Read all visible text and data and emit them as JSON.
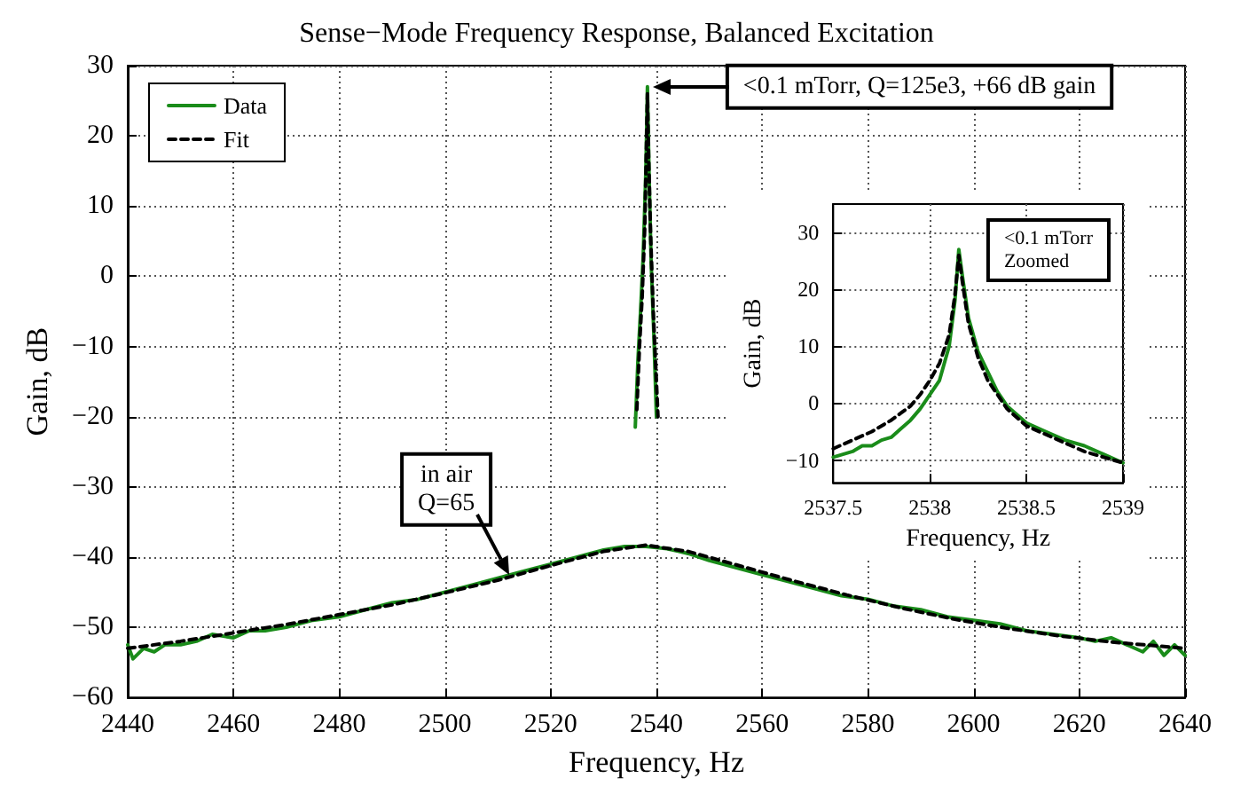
{
  "chart_data": [
    {
      "type": "line",
      "title": "Sense−Mode Frequency Response, Balanced Excitation",
      "xlabel": "Frequency, Hz",
      "ylabel": "Gain, dB",
      "xlim": [
        2440,
        2640
      ],
      "xticks": [
        2440,
        2460,
        2480,
        2500,
        2520,
        2540,
        2560,
        2580,
        2600,
        2620,
        2640
      ],
      "ylim": [
        -60,
        30
      ],
      "yticks": [
        -60,
        -50,
        -40,
        -30,
        -20,
        -10,
        0,
        10,
        20,
        30
      ],
      "grid": true,
      "legend": "top left",
      "marker": "none",
      "annotations": [
        "<0.1 mTorr, Q=125e3, +66 dB gain",
        {
          "text": "in air\nQ=65",
          "x": 2512,
          "y": -42.5
        }
      ],
      "series": [
        {
          "name": "Data",
          "color": "#1a8c1a",
          "line_style": "solid",
          "x": [
            2440,
            2441,
            2443,
            2445,
            2447,
            2450,
            2453,
            2456,
            2460,
            2463,
            2466,
            2470,
            2475,
            2480,
            2485,
            2490,
            2495,
            2500,
            2505,
            2510,
            2515,
            2520,
            2525,
            2530,
            2534,
            2538,
            2542,
            2546,
            2550,
            2555,
            2560,
            2565,
            2570,
            2575,
            2580,
            2585,
            2590,
            2595,
            2600,
            2605,
            2610,
            2615,
            2620,
            2623,
            2626,
            2629,
            2632,
            2634,
            2636,
            2638,
            2640
          ],
          "values": [
            -52.5,
            -54.5,
            -53,
            -53.5,
            -52.5,
            -52.5,
            -52,
            -51,
            -51.5,
            -50.5,
            -50.5,
            -50,
            -49,
            -48.5,
            -47.5,
            -46.5,
            -46,
            -45,
            -44,
            -43,
            -42,
            -41,
            -40,
            -39,
            -38.5,
            -38.5,
            -38.8,
            -39.5,
            -40.5,
            -41.5,
            -42.5,
            -43.5,
            -44.5,
            -45.5,
            -46,
            -47,
            -47.5,
            -48.5,
            -49,
            -49.5,
            -50.5,
            -51,
            -51.5,
            -52,
            -51.5,
            -52.5,
            -53.5,
            -52,
            -54,
            -52.5,
            -54
          ]
        },
        {
          "name": "Fit",
          "color": "#000000",
          "line_style": "dashed",
          "x": [
            2440,
            2450,
            2460,
            2470,
            2480,
            2490,
            2500,
            2510,
            2520,
            2530,
            2538,
            2546,
            2556,
            2566,
            2576,
            2586,
            2596,
            2606,
            2616,
            2626,
            2640
          ],
          "values": [
            -53,
            -52,
            -50.8,
            -49.6,
            -48.2,
            -46.8,
            -45.1,
            -43.3,
            -41.2,
            -39.2,
            -38.3,
            -39.2,
            -41.3,
            -43.4,
            -45.4,
            -47.2,
            -48.8,
            -50.1,
            -51.2,
            -52.1,
            -53
          ]
        },
        {
          "color": "#1a8c1a",
          "line_style": "solid",
          "x": [
            2536,
            2536.5,
            2537,
            2537.5,
            2538,
            2538.3,
            2538.6,
            2539,
            2539.5,
            2540
          ],
          "values": [
            -21.5,
            -12,
            -5,
            3,
            15,
            27,
            15,
            2,
            -8,
            -20
          ]
        },
        {
          "color": "#000000",
          "line_style": "dashed",
          "x": [
            2536.3,
            2536.8,
            2537.3,
            2537.8,
            2538.1,
            2538.3,
            2538.5,
            2538.9,
            2539.4,
            2540.3
          ],
          "values": [
            -19,
            -10,
            -3,
            7,
            18,
            26,
            18,
            6,
            -5,
            -20
          ]
        }
      ]
    },
    {
      "type": "line",
      "xlabel": "Frequency, Hz",
      "ylabel": "Gain, dB",
      "xlim": [
        2537.5,
        2539
      ],
      "xticks": [
        2537.5,
        2538,
        2538.5,
        2539
      ],
      "ylim": [
        -14,
        35
      ],
      "yticks": [
        -10,
        0,
        10,
        20,
        30
      ],
      "grid": true,
      "marker": "none",
      "annotations": [
        "<0.1 mTorr\nZoomed"
      ],
      "series": [
        {
          "color": "#1a8c1a",
          "line_style": "solid",
          "x": [
            2537.5,
            2537.55,
            2537.6,
            2537.65,
            2537.7,
            2537.75,
            2537.8,
            2537.85,
            2537.9,
            2537.95,
            2538,
            2538.05,
            2538.1,
            2538.13,
            2538.15,
            2538.17,
            2538.2,
            2538.25,
            2538.3,
            2538.35,
            2538.4,
            2538.45,
            2538.5,
            2538.6,
            2538.7,
            2538.8,
            2538.9,
            2539
          ],
          "values": [
            -9.5,
            -9,
            -8.5,
            -7.5,
            -7.5,
            -6.5,
            -6,
            -4.5,
            -3,
            -1,
            1.5,
            4,
            10,
            18,
            27,
            22,
            15,
            9,
            5.5,
            2,
            -0.5,
            -2,
            -3.5,
            -5,
            -6.5,
            -7.5,
            -9,
            -10.5
          ]
        },
        {
          "color": "#000000",
          "line_style": "dashed",
          "x": [
            2537.5,
            2537.6,
            2537.7,
            2537.8,
            2537.9,
            2537.95,
            2538,
            2538.05,
            2538.1,
            2538.13,
            2538.15,
            2538.17,
            2538.2,
            2538.25,
            2538.3,
            2538.4,
            2538.5,
            2538.6,
            2538.7,
            2538.8,
            2538.9,
            2539
          ],
          "values": [
            -8,
            -6.5,
            -5,
            -3,
            -0.5,
            1.5,
            4,
            7,
            12,
            19,
            26,
            21,
            14,
            8,
            4,
            -1,
            -4,
            -5.5,
            -7,
            -8.5,
            -9.5,
            -10.5
          ]
        }
      ]
    }
  ]
}
